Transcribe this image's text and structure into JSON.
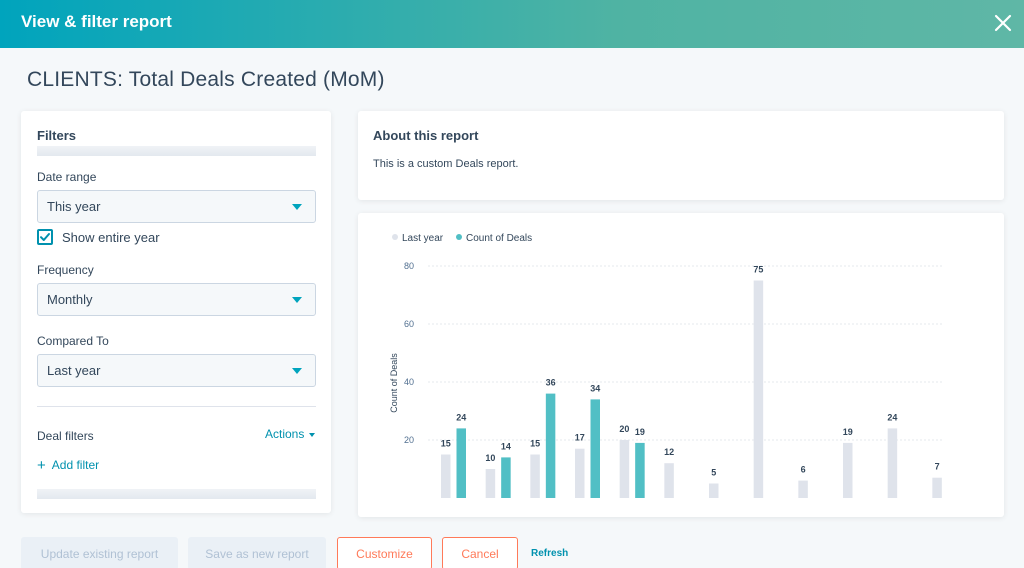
{
  "header": {
    "title": "View & filter report"
  },
  "page": {
    "title": "CLIENTS: Total Deals Created (MoM)"
  },
  "filters": {
    "heading": "Filters",
    "date_range": {
      "label": "Date range",
      "value": "This year"
    },
    "show_entire_year": {
      "label": "Show entire year",
      "checked": true
    },
    "frequency": {
      "label": "Frequency",
      "value": "Monthly"
    },
    "compared_to": {
      "label": "Compared To",
      "value": "Last year"
    },
    "deal_filters": {
      "label": "Deal filters",
      "actions": "Actions",
      "add_filter": "Add filter"
    }
  },
  "about": {
    "title": "About this report",
    "text": "This is a custom Deals report."
  },
  "chart_data": {
    "type": "bar",
    "ylabel": "Count of Deals",
    "xlabel": "",
    "ylim": [
      0,
      80
    ],
    "yticks": [
      20,
      40,
      60,
      80
    ],
    "grid": true,
    "legend_position": "top-left",
    "series": [
      {
        "name": "Last year",
        "color": "#dfe3eb",
        "values": [
          15,
          10,
          15,
          17,
          20,
          12,
          5,
          75,
          6,
          19,
          24,
          7
        ]
      },
      {
        "name": "Count of Deals",
        "color": "#51bfc5",
        "values": [
          24,
          14,
          36,
          34,
          19,
          null,
          null,
          null,
          null,
          null,
          null,
          null
        ]
      }
    ]
  },
  "actions": {
    "update_existing": "Update existing report",
    "save_new": "Save as new report",
    "customize": "Customize",
    "cancel": "Cancel",
    "refresh": "Refresh"
  },
  "colors": {
    "accent": "#00a4bd",
    "link": "#0091ae",
    "orange": "#ff7a59"
  }
}
